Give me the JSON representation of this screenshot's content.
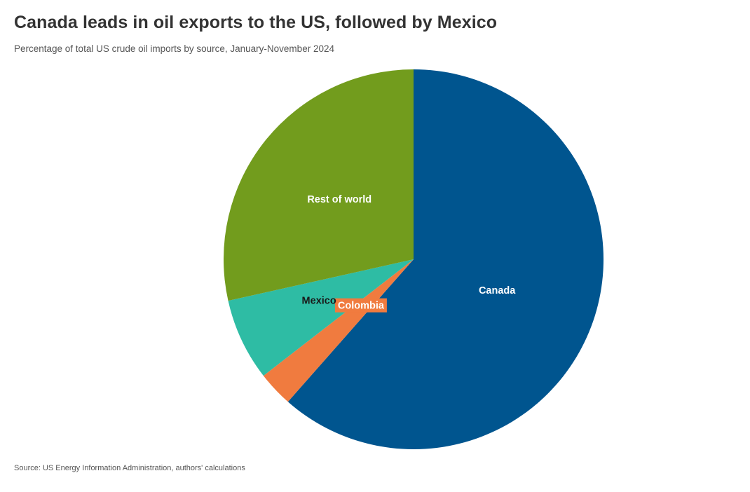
{
  "header": {
    "title": "Canada leads in oil exports to the US, followed by Mexico",
    "subtitle": "Percentage of total US crude oil imports by source, January-November 2024"
  },
  "footer": {
    "source": "Source: US Energy Information Administration, authors' calculations"
  },
  "chart_data": {
    "type": "pie",
    "title": "Canada leads in oil exports to the US, followed by Mexico",
    "subtitle": "Percentage of total US crude oil imports by source, January-November 2024",
    "slices": [
      {
        "label": "Canada",
        "value": 61.5,
        "color": "#00558f",
        "label_color": "#ffffff"
      },
      {
        "label": "Colombia",
        "value": 3.0,
        "color": "#f07b3f",
        "label_color": "#ffffff"
      },
      {
        "label": "Mexico",
        "value": 7.0,
        "color": "#2ebca4",
        "label_color": "#1a1a1a"
      },
      {
        "label": "Rest of world",
        "value": 28.5,
        "color": "#729c1d",
        "label_color": "#ffffff"
      }
    ],
    "start_angle": "12 o'clock",
    "direction": "clockwise",
    "legend": "none"
  }
}
